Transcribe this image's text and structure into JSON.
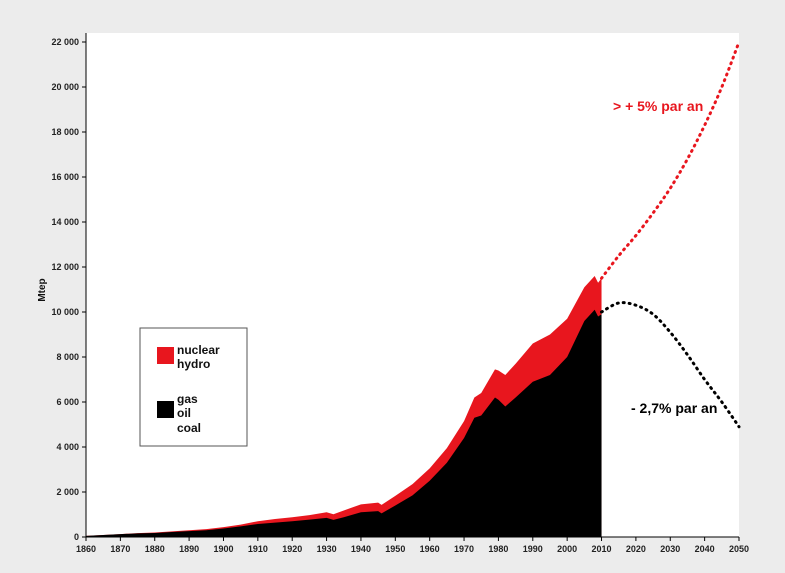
{
  "chart_data": {
    "type": "area",
    "xlabel": "",
    "ylabel": "Mtep",
    "xlim": [
      1860,
      2050
    ],
    "ylim": [
      0,
      22000
    ],
    "x_ticks": [
      "1860",
      "1870",
      "1880",
      "1890",
      "1900",
      "1910",
      "1920",
      "1930",
      "1940",
      "1950",
      "1960",
      "1970",
      "1980",
      "1990",
      "2000",
      "2010",
      "2020",
      "2030",
      "2040",
      "2050"
    ],
    "y_ticks": [
      "0",
      "2 000",
      "4 000",
      "6 000",
      "8 000",
      "10 000",
      "12 000",
      "14 000",
      "16 000",
      "18 000",
      "20 000",
      "22 000"
    ],
    "grid": false,
    "legend_position": "left-middle",
    "colors": {
      "fossil": "#000000",
      "nuclear_hydro": "#e8161e",
      "projection_high": "#e8161e",
      "projection_low": "#000000"
    },
    "legend": [
      {
        "labels": [
          "nuclear",
          "hydro"
        ],
        "color": "#e8161e"
      },
      {
        "labels": [
          "gas",
          "oil",
          "coal"
        ],
        "color": "#000000"
      }
    ],
    "series": [
      {
        "name": "gas, oil, coal",
        "x": [
          1860,
          1865,
          1870,
          1875,
          1880,
          1885,
          1890,
          1895,
          1900,
          1905,
          1910,
          1915,
          1920,
          1925,
          1930,
          1932,
          1935,
          1940,
          1945,
          1946,
          1950,
          1955,
          1960,
          1965,
          1970,
          1973,
          1975,
          1979,
          1980,
          1982,
          1985,
          1990,
          1995,
          2000,
          2005,
          2008,
          2009,
          2010
        ],
        "values": [
          50,
          90,
          130,
          160,
          180,
          220,
          260,
          300,
          380,
          470,
          580,
          640,
          700,
          770,
          850,
          760,
          880,
          1100,
          1150,
          1050,
          1400,
          1850,
          2500,
          3300,
          4400,
          5300,
          5400,
          6200,
          6100,
          5800,
          6200,
          6900,
          7200,
          8000,
          9600,
          10100,
          9800,
          9900
        ]
      },
      {
        "name": "nuclear, hydro",
        "x": [
          1860,
          1865,
          1870,
          1875,
          1880,
          1885,
          1890,
          1895,
          1900,
          1905,
          1910,
          1915,
          1920,
          1925,
          1930,
          1932,
          1935,
          1940,
          1945,
          1946,
          1950,
          1955,
          1960,
          1965,
          1970,
          1973,
          1975,
          1979,
          1980,
          1982,
          1985,
          1990,
          1995,
          2000,
          2005,
          2008,
          2009,
          2010
        ],
        "values": [
          0,
          0,
          0,
          10,
          20,
          30,
          40,
          50,
          60,
          80,
          120,
          160,
          180,
          200,
          250,
          250,
          300,
          350,
          380,
          380,
          430,
          500,
          550,
          650,
          750,
          900,
          1000,
          1250,
          1300,
          1400,
          1500,
          1700,
          1800,
          1700,
          1500,
          1500,
          1500,
          1600
        ]
      },
      {
        "name": "projection_high",
        "x": [
          2010,
          2015,
          2020,
          2025,
          2030,
          2035,
          2040,
          2045,
          2050
        ],
        "values": [
          11500,
          12500,
          13400,
          14400,
          15500,
          16800,
          18300,
          20000,
          22000
        ]
      },
      {
        "name": "projection_low",
        "x": [
          2010,
          2015,
          2020,
          2025,
          2030,
          2035,
          2040,
          2045,
          2050
        ],
        "values": [
          10000,
          10400,
          10300,
          9900,
          9100,
          8100,
          7000,
          6000,
          4900
        ]
      }
    ],
    "annotations": [
      {
        "text": "> + 5% par an",
        "color": "#e8161e"
      },
      {
        "text": "- 2,7% par an",
        "color": "#000000"
      }
    ]
  }
}
